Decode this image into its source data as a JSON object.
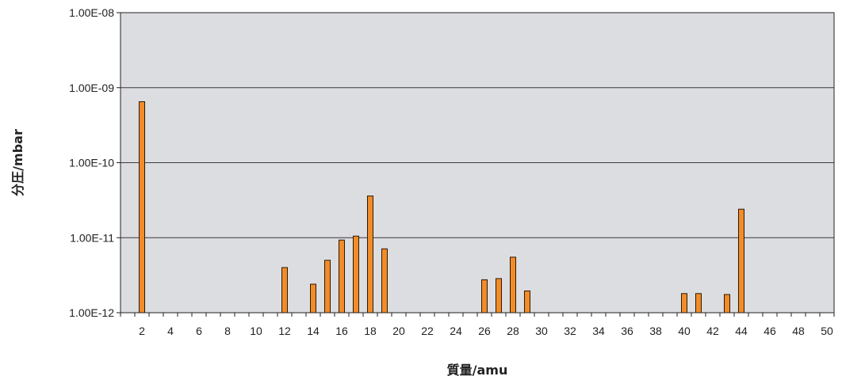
{
  "chart_data": {
    "type": "bar",
    "xlabel": "質量/amu",
    "ylabel": "分圧/mbar",
    "y_scale": "log",
    "ylim": [
      1e-12,
      1e-08
    ],
    "y_ticks": [
      {
        "value": 1e-08,
        "label": "1.00E-08"
      },
      {
        "value": 1e-09,
        "label": "1.00E-09"
      },
      {
        "value": 1e-10,
        "label": "1.00E-10"
      },
      {
        "value": 1e-11,
        "label": "1.00E-11"
      },
      {
        "value": 1e-12,
        "label": "1.00E-12"
      }
    ],
    "xlim": [
      1,
      50
    ],
    "x_tick_labels": [
      "2",
      "4",
      "6",
      "8",
      "10",
      "12",
      "14",
      "16",
      "18",
      "20",
      "22",
      "24",
      "26",
      "28",
      "30",
      "32",
      "34",
      "36",
      "38",
      "40",
      "42",
      "44",
      "46",
      "48",
      "50"
    ],
    "grid": true,
    "legend": "none",
    "colors": {
      "bar_fill": "#f28c28",
      "bar_stroke": "#2a1a0a",
      "plot_bg": "#dcdde0",
      "grid": "#3a3a3a"
    },
    "bars": [
      {
        "x": 2,
        "y": 6.5e-10
      },
      {
        "x": 12,
        "y": 4e-12
      },
      {
        "x": 14,
        "y": 2.4e-12
      },
      {
        "x": 15,
        "y": 5e-12
      },
      {
        "x": 16,
        "y": 9.3e-12
      },
      {
        "x": 17,
        "y": 1.05e-11
      },
      {
        "x": 18,
        "y": 3.6e-11
      },
      {
        "x": 19,
        "y": 7.1e-12
      },
      {
        "x": 26,
        "y": 2.75e-12
      },
      {
        "x": 27,
        "y": 2.85e-12
      },
      {
        "x": 28,
        "y": 5.5e-12
      },
      {
        "x": 29,
        "y": 1.95e-12
      },
      {
        "x": 40,
        "y": 1.8e-12
      },
      {
        "x": 41,
        "y": 1.8e-12
      },
      {
        "x": 43,
        "y": 1.75e-12
      },
      {
        "x": 44,
        "y": 2.4e-11
      }
    ]
  }
}
